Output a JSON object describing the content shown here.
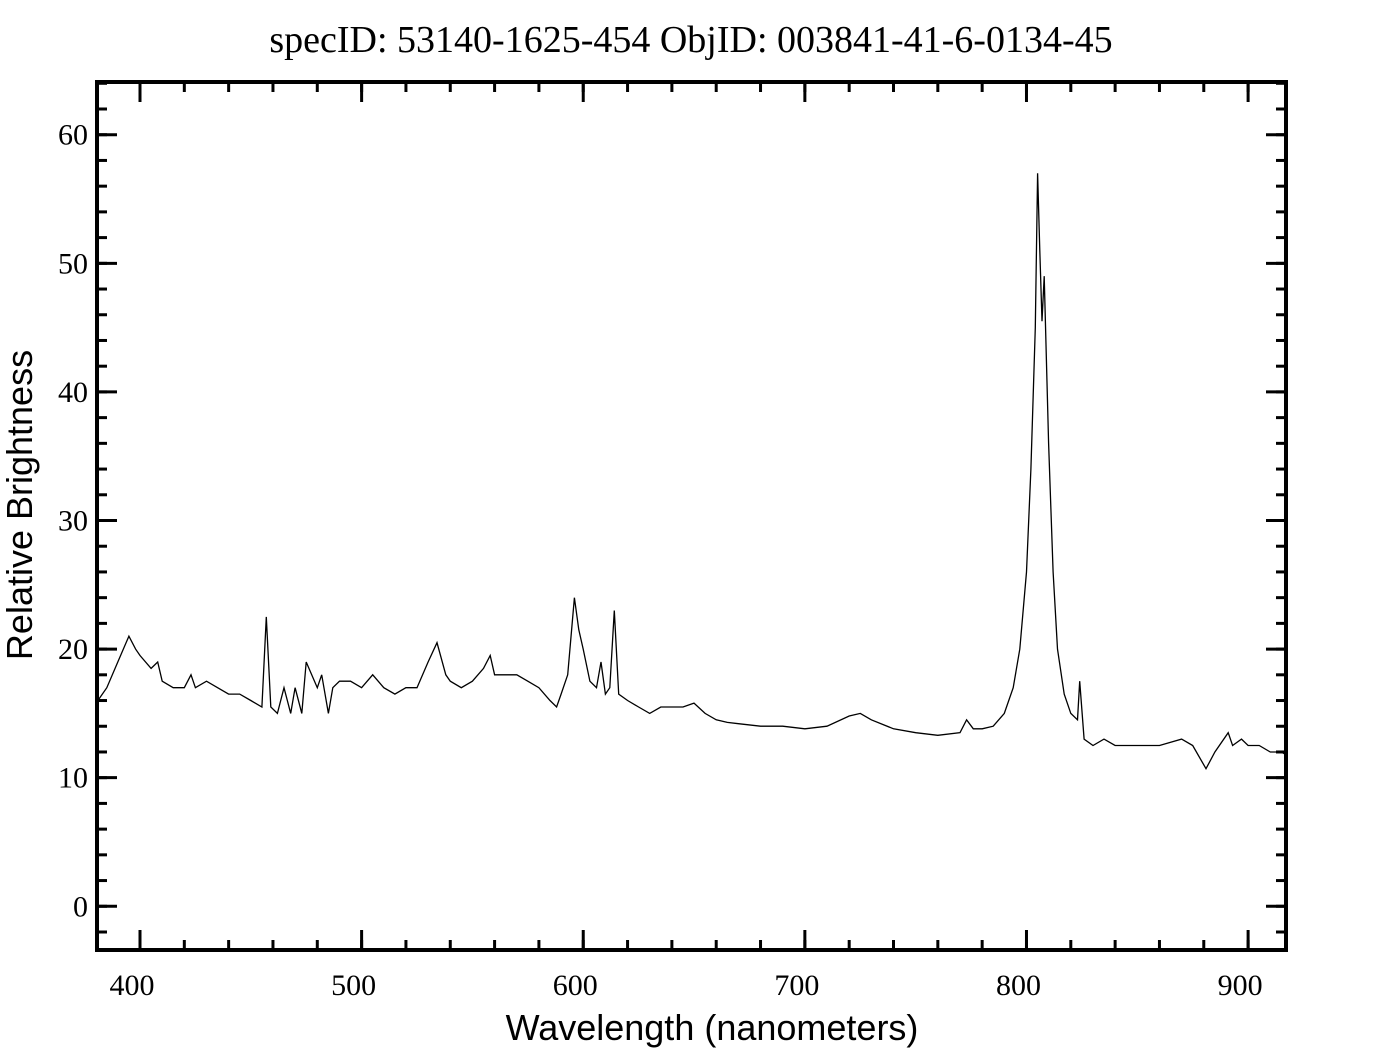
{
  "chart_data": {
    "type": "line",
    "title": "specID: 53140-1625-454   ObjID: 003841-41-6-0134-45",
    "x_label": "Wavelength (nanometers)",
    "y_label": "Relative Brightness",
    "xlim": [
      380.6,
      917.1
    ],
    "ylim": [
      -3.4,
      64.1
    ],
    "xticks": [
      400,
      500,
      600,
      700,
      800,
      900
    ],
    "yticks": [
      0,
      10,
      20,
      30,
      40,
      50,
      60
    ],
    "x_minor_divisions": 5,
    "y_minor_divisions": 5,
    "mirror_ticks": true,
    "series": [
      {
        "color": "#000000",
        "x": [
          381,
          385,
          390,
          395,
          398,
          400,
          405,
          408,
          410,
          415,
          420,
          423,
          425,
          430,
          435,
          440,
          445,
          450,
          455,
          457,
          459,
          462,
          465,
          468,
          470,
          473,
          475,
          480,
          482,
          485,
          487,
          490,
          495,
          500,
          505,
          510,
          515,
          520,
          525,
          530,
          534,
          538,
          540,
          545,
          550,
          555,
          558,
          560,
          565,
          570,
          575,
          580,
          585,
          588,
          590,
          593,
          596,
          598,
          600,
          603,
          606,
          608,
          610,
          612,
          614,
          616,
          620,
          625,
          630,
          635,
          640,
          645,
          650,
          655,
          660,
          665,
          670,
          680,
          690,
          700,
          710,
          720,
          725,
          730,
          740,
          750,
          760,
          770,
          773,
          776,
          780,
          785,
          790,
          794,
          797,
          800,
          802,
          804,
          805,
          806,
          807,
          808,
          810,
          812,
          814,
          817,
          820,
          823,
          824,
          826,
          830,
          835,
          840,
          850,
          860,
          870,
          875,
          881,
          885,
          891,
          893,
          897,
          900,
          905,
          910,
          915,
          917
        ],
        "values": [
          16,
          17,
          19,
          21,
          20,
          19.5,
          18.5,
          19,
          17.5,
          17,
          17,
          18,
          17,
          17.5,
          17,
          16.5,
          16.5,
          16,
          15.5,
          22.5,
          15.5,
          15,
          17,
          15,
          17,
          15,
          19,
          17,
          18,
          15,
          17,
          17.5,
          17.5,
          17,
          18,
          17,
          16.5,
          17,
          17,
          19,
          20.5,
          18,
          17.5,
          17,
          17.5,
          18.5,
          19.5,
          18,
          18,
          18,
          17.5,
          17,
          16,
          15.5,
          16.5,
          18,
          24,
          21.5,
          20,
          17.5,
          17,
          19,
          16.5,
          17,
          23,
          16.5,
          16,
          15.5,
          15,
          15.5,
          15.5,
          15.5,
          15.8,
          15,
          14.5,
          14.3,
          14.2,
          14,
          14,
          13.8,
          14,
          14.8,
          15,
          14.5,
          13.8,
          13.5,
          13.3,
          13.5,
          14.5,
          13.8,
          13.8,
          14,
          15,
          17,
          20,
          26,
          34,
          45,
          57,
          51,
          45.5,
          49,
          36,
          26,
          20,
          16.5,
          15,
          14.5,
          17.5,
          13,
          12.5,
          13,
          12.5,
          12.5,
          12.5,
          13,
          12.5,
          10.7,
          12,
          13.5,
          12.5,
          13,
          12.5,
          12.5,
          12,
          12,
          11.8
        ]
      }
    ]
  }
}
